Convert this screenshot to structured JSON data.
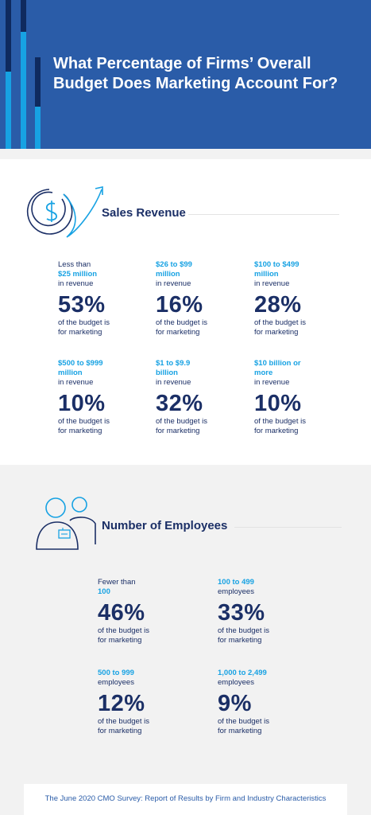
{
  "header": {
    "title": "What Percentage of Firms’ Overall Budget Does Marketing Account For?",
    "colors": {
      "background": "#2a5ca8",
      "accent_light": "#17a2e3",
      "accent_dark": "#0f2a5e"
    }
  },
  "sections": [
    {
      "title": "Sales Revenue",
      "icon": "dollar-growth-icon",
      "items": [
        {
          "pre": "Less than",
          "highlight": "$25 million",
          "post": "in revenue",
          "percent": "53%",
          "desc1": "of the budget is",
          "desc2": "for marketing"
        },
        {
          "pre": "",
          "highlight": "$26 to $99 million",
          "post": "in revenue",
          "percent": "16%",
          "desc1": "of the budget is",
          "desc2": "for marketing"
        },
        {
          "pre": "",
          "highlight": "$100 to $499 million",
          "post": "in revenue",
          "percent": "28%",
          "desc1": "of the budget is",
          "desc2": "for marketing"
        },
        {
          "pre": "",
          "highlight": "$500 to $999 million",
          "post": "in revenue",
          "percent": "10%",
          "desc1": "of the budget is",
          "desc2": "for marketing"
        },
        {
          "pre": "",
          "highlight": "$1 to $9.9 billion",
          "post": "in revenue",
          "percent": "32%",
          "desc1": "of the budget is",
          "desc2": "for marketing"
        },
        {
          "pre": "",
          "highlight": "$10 billion or more",
          "post": "in revenue",
          "percent": "10%",
          "desc1": "of the budget is",
          "desc2": "for marketing"
        }
      ]
    },
    {
      "title": "Number of Employees",
      "icon": "people-icon",
      "items": [
        {
          "pre": "Fewer than",
          "highlight": "100",
          "post": "",
          "percent": "46%",
          "desc1": "of the budget is",
          "desc2": "for marketing"
        },
        {
          "pre": "",
          "highlight": "100 to 499",
          "post": "employees",
          "percent": "33%",
          "desc1": "of the budget is",
          "desc2": "for marketing"
        },
        {
          "pre": "",
          "highlight": "500 to 999",
          "post": "employees",
          "percent": "12%",
          "desc1": "of the budget is",
          "desc2": "for marketing"
        },
        {
          "pre": "",
          "highlight": "1,000 to 2,499",
          "post": "employees",
          "percent": "9%",
          "desc1": "of the budget is",
          "desc2": "for marketing"
        }
      ]
    }
  ],
  "footer": {
    "text": "The June 2020 CMO Survey: Report of Results by Firm and Industry Characteristics"
  },
  "chart_data": [
    {
      "type": "table",
      "title": "Sales Revenue",
      "categories": [
        "Less than $25 million",
        "$26 to $99 million",
        "$100 to $499 million",
        "$500 to $999 million",
        "$1 to $9.9 billion",
        "$10 billion or more"
      ],
      "values": [
        53,
        16,
        28,
        10,
        32,
        10
      ],
      "unit": "%"
    },
    {
      "type": "table",
      "title": "Number of Employees",
      "categories": [
        "Fewer than 100",
        "100 to 499",
        "500 to 999",
        "1,000 to 2,499"
      ],
      "values": [
        46,
        33,
        12,
        9
      ],
      "unit": "%"
    }
  ]
}
